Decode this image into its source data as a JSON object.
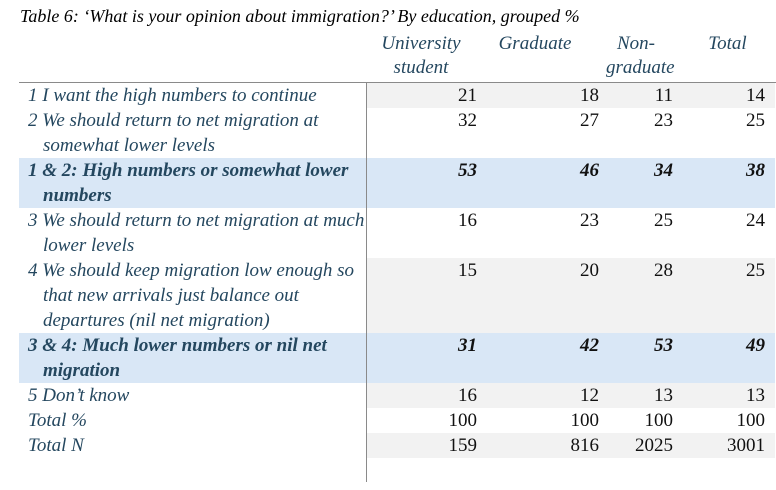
{
  "title": "Table 6: ‘What is your opinion about immigration?’ By education, grouped %",
  "columns": [
    "University student",
    "Graduate",
    "Non-graduate",
    "Total"
  ],
  "colors": {
    "text": "#24475f",
    "highlight_row": "#d9e7f6",
    "shaded_row": "#f2f2f2"
  },
  "rows": [
    {
      "label": "1 I want the high numbers to continue",
      "values": [
        "21",
        "18",
        "11",
        "14"
      ],
      "style": "gray"
    },
    {
      "label": "2 We should return to net migration at somewhat lower levels",
      "values": [
        "32",
        "27",
        "23",
        "25"
      ],
      "style": "white"
    },
    {
      "label": "1 & 2: High numbers or somewhat lower numbers",
      "values": [
        "53",
        "46",
        "34",
        "38"
      ],
      "style": "blue"
    },
    {
      "label": "3 We should return to net migration at much lower levels",
      "values": [
        "16",
        "23",
        "25",
        "24"
      ],
      "style": "white"
    },
    {
      "label": "4 We should keep migration low enough so that new arrivals just balance out departures (nil net migration)",
      "values": [
        "15",
        "20",
        "28",
        "25"
      ],
      "style": "gray"
    },
    {
      "label": "3 & 4: Much lower numbers or nil net migration",
      "values": [
        "31",
        "42",
        "53",
        "49"
      ],
      "style": "blue"
    },
    {
      "label": "5 Don’t know",
      "values": [
        "16",
        "12",
        "13",
        "13"
      ],
      "style": "gray"
    },
    {
      "label": "Total %",
      "values": [
        "100",
        "100",
        "100",
        "100"
      ],
      "style": "white"
    },
    {
      "label": "Total N",
      "values": [
        "159",
        "816",
        "2025",
        "3001"
      ],
      "style": "gray"
    }
  ]
}
